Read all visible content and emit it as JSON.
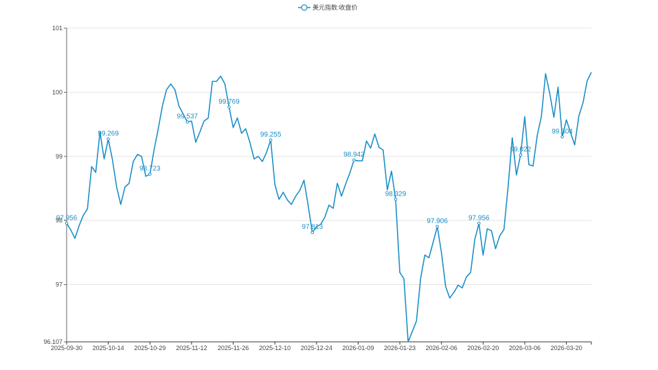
{
  "chart_data": {
    "type": "line",
    "legend": {
      "position": "top-center",
      "label": "美元指数:收盘价"
    },
    "color": "#1b8fc6",
    "grid": true,
    "ylim": [
      96.107,
      101
    ],
    "y_ticks": [
      96.107,
      97,
      98,
      99,
      100,
      101
    ],
    "x_ticks": [
      "2025-09-30",
      "2025-10-14",
      "2025-10-29",
      "2025-11-12",
      "2025-11-26",
      "2025-12-10",
      "2025-12-24",
      "2026-01-09",
      "2026-01-23",
      "2026-02-06",
      "2026-02-20",
      "2026-03-06",
      "2026-03-20"
    ],
    "series": [
      {
        "name": "美元指数:收盘价",
        "values": [
          97.956,
          97.85,
          97.72,
          97.92,
          98.08,
          98.18,
          98.84,
          98.75,
          99.38,
          98.96,
          99.269,
          98.95,
          98.52,
          98.25,
          98.52,
          98.58,
          98.92,
          99.03,
          99.0,
          98.69,
          98.723,
          99.1,
          99.43,
          99.79,
          100.04,
          100.13,
          100.04,
          99.78,
          99.66,
          99.537,
          99.55,
          99.22,
          99.38,
          99.55,
          99.6,
          100.17,
          100.17,
          100.25,
          100.13,
          99.769,
          99.45,
          99.6,
          99.36,
          99.43,
          99.22,
          98.96,
          99.0,
          98.92,
          99.06,
          99.255,
          98.56,
          98.33,
          98.44,
          98.32,
          98.25,
          98.38,
          98.47,
          98.63,
          98.23,
          97.813,
          97.9,
          97.94,
          98.05,
          98.24,
          98.19,
          98.58,
          98.38,
          98.57,
          98.74,
          98.942,
          98.93,
          98.93,
          99.24,
          99.13,
          99.35,
          99.14,
          99.1,
          98.48,
          98.77,
          98.329,
          97.19,
          97.09,
          96.107,
          96.27,
          96.43,
          97.1,
          97.46,
          97.42,
          97.66,
          97.906,
          97.5,
          96.97,
          96.79,
          96.88,
          96.99,
          96.95,
          97.12,
          97.19,
          97.7,
          97.956,
          97.46,
          97.87,
          97.84,
          97.56,
          97.76,
          97.86,
          98.52,
          99.29,
          98.71,
          99.022,
          99.62,
          98.87,
          98.85,
          99.33,
          99.62,
          100.29,
          99.98,
          99.61,
          100.08,
          99.304,
          99.57,
          99.37,
          99.18,
          99.63,
          99.84,
          100.18,
          100.31
        ],
        "point_labels": [
          {
            "index": 0,
            "text": "97.956"
          },
          {
            "index": 10,
            "text": "99.269"
          },
          {
            "index": 20,
            "text": "98.723"
          },
          {
            "index": 29,
            "text": "99.537"
          },
          {
            "index": 39,
            "text": "99.769"
          },
          {
            "index": 49,
            "text": "99.255"
          },
          {
            "index": 59,
            "text": "97.813"
          },
          {
            "index": 69,
            "text": "98.942"
          },
          {
            "index": 79,
            "text": "98.329"
          },
          {
            "index": 89,
            "text": "97.906"
          },
          {
            "index": 99,
            "text": "97.956"
          },
          {
            "index": 109,
            "text": "99.022"
          },
          {
            "index": 119,
            "text": "99.304"
          }
        ]
      }
    ]
  }
}
